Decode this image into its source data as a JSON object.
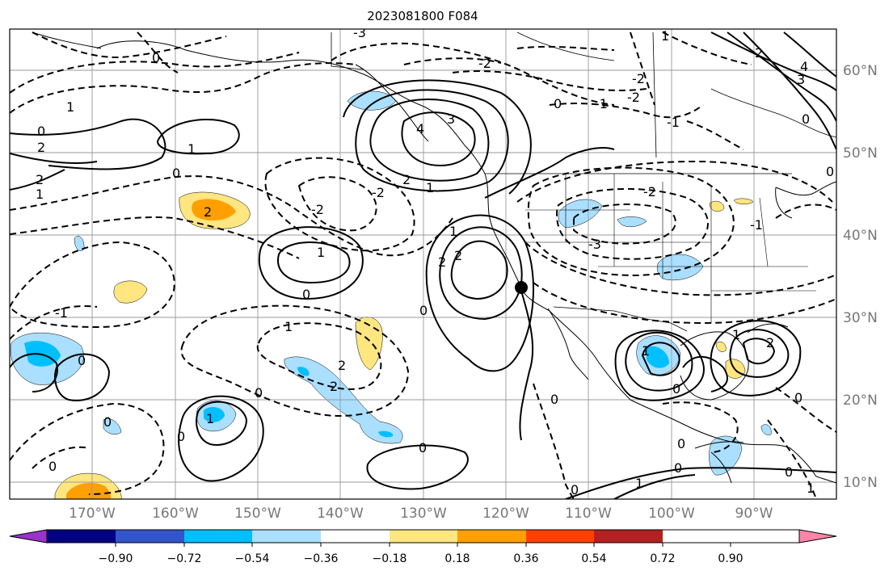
{
  "title": "2023081800 F084",
  "map": {
    "projection": "plate carree",
    "lon_range": [
      -180,
      -80
    ],
    "lat_range": [
      8,
      65
    ],
    "gridlines": true,
    "lat_labels": [
      "60°N",
      "50°N",
      "40°N",
      "30°N",
      "20°N",
      "10°N"
    ],
    "lon_labels": [
      "170°W",
      "160°W",
      "150°W",
      "140°W",
      "130°W",
      "120°W",
      "110°W",
      "100°W",
      "90°W"
    ],
    "marker": {
      "label": "point",
      "lon": -118.3,
      "lat": 34.0,
      "color": "#000000"
    }
  },
  "colorbar": {
    "ticks": [
      "−0.90",
      "−0.72",
      "−0.54",
      "−0.36",
      "−0.18",
      "0.18",
      "0.36",
      "0.54",
      "0.72",
      "0.90"
    ],
    "colors": [
      "#9933cc",
      "#000080",
      "#3355cc",
      "#00bfff",
      "#aadfff",
      "#ffffff",
      "#ffe680",
      "#ffa000",
      "#ff4000",
      "#b22222",
      "#ff85a8"
    ],
    "extend": "both"
  },
  "contour_labels": [
    "0",
    "1",
    "2",
    "3",
    "4",
    "-1",
    "-2",
    "-3"
  ]
}
